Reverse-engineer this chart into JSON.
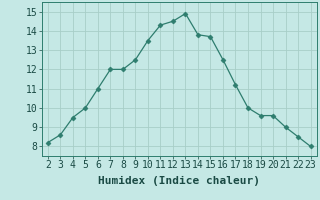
{
  "x": [
    2,
    3,
    4,
    5,
    6,
    7,
    8,
    9,
    10,
    11,
    12,
    13,
    14,
    15,
    16,
    17,
    18,
    19,
    20,
    21,
    22,
    23
  ],
  "y": [
    8.2,
    8.6,
    9.5,
    10.0,
    11.0,
    12.0,
    12.0,
    12.5,
    13.5,
    14.3,
    14.5,
    14.9,
    13.8,
    13.7,
    12.5,
    11.2,
    10.0,
    9.6,
    9.6,
    9.0,
    8.5,
    8.0
  ],
  "line_color": "#2e7d6e",
  "marker": "D",
  "marker_size": 2.5,
  "bg_color": "#c5e8e5",
  "grid_color": "#a8cec8",
  "xlabel": "Humidex (Indice chaleur)",
  "xlim": [
    1.5,
    23.5
  ],
  "ylim": [
    7.5,
    15.5
  ],
  "xticks": [
    2,
    3,
    4,
    5,
    6,
    7,
    8,
    9,
    10,
    11,
    12,
    13,
    14,
    15,
    16,
    17,
    18,
    19,
    20,
    21,
    22,
    23
  ],
  "yticks": [
    8,
    9,
    10,
    11,
    12,
    13,
    14,
    15
  ],
  "label_fontsize": 8,
  "tick_fontsize": 7
}
